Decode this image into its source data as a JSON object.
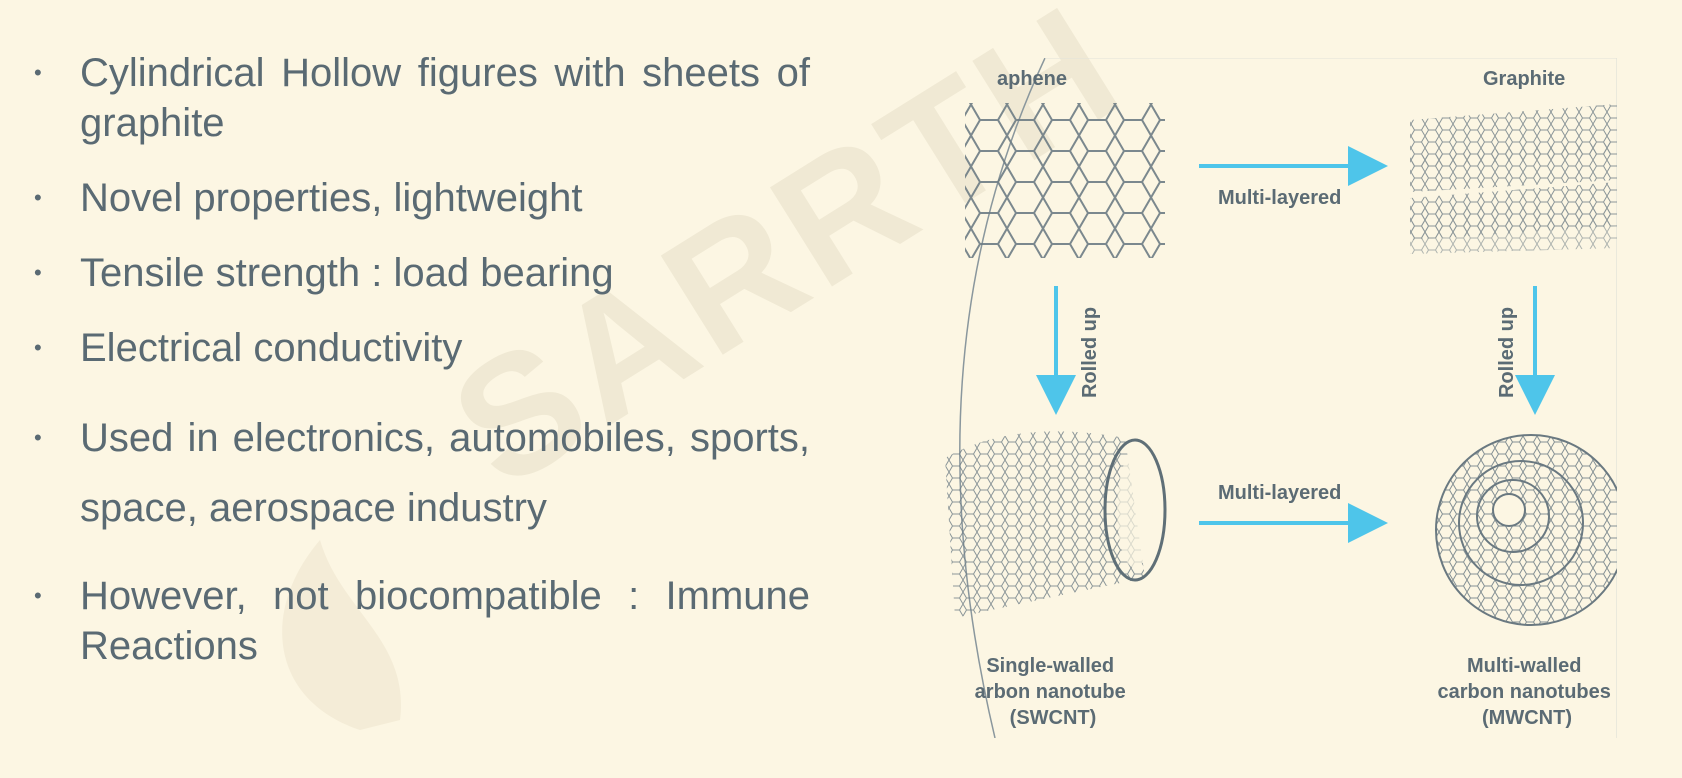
{
  "bullets": [
    {
      "text": "Cylindrical Hollow figures with sheets of graphite"
    },
    {
      "text": "Novel properties, lightweight"
    },
    {
      "text": "Tensile strength : load bearing"
    },
    {
      "text": "Electrical conductivity"
    },
    {
      "text": "Used in electronics, automobiles, sports, space,  aerospace industry"
    },
    {
      "text": "However, not biocompatible : Immune Reactions"
    }
  ],
  "bullet_glyph": "•",
  "watermark": {
    "text": "SARRTH"
  },
  "figure": {
    "graphene_label": "aphene",
    "graphite_label": "Graphite",
    "arrow_top_label": "Multi-layered",
    "arrow_bottom_label": "Multi-layered",
    "rolled_left": "Rolled up",
    "rolled_right": "Rolled up",
    "swcnt_lines": [
      "Single-walled",
      "arbon nanotube",
      "(SWCNT)"
    ],
    "mwcnt_lines": [
      "Multi-walled",
      "carbon nanotubes",
      "(MWCNT)"
    ],
    "arrow_color": "#4ec5ea",
    "lattice_color": "#5f6f77"
  }
}
